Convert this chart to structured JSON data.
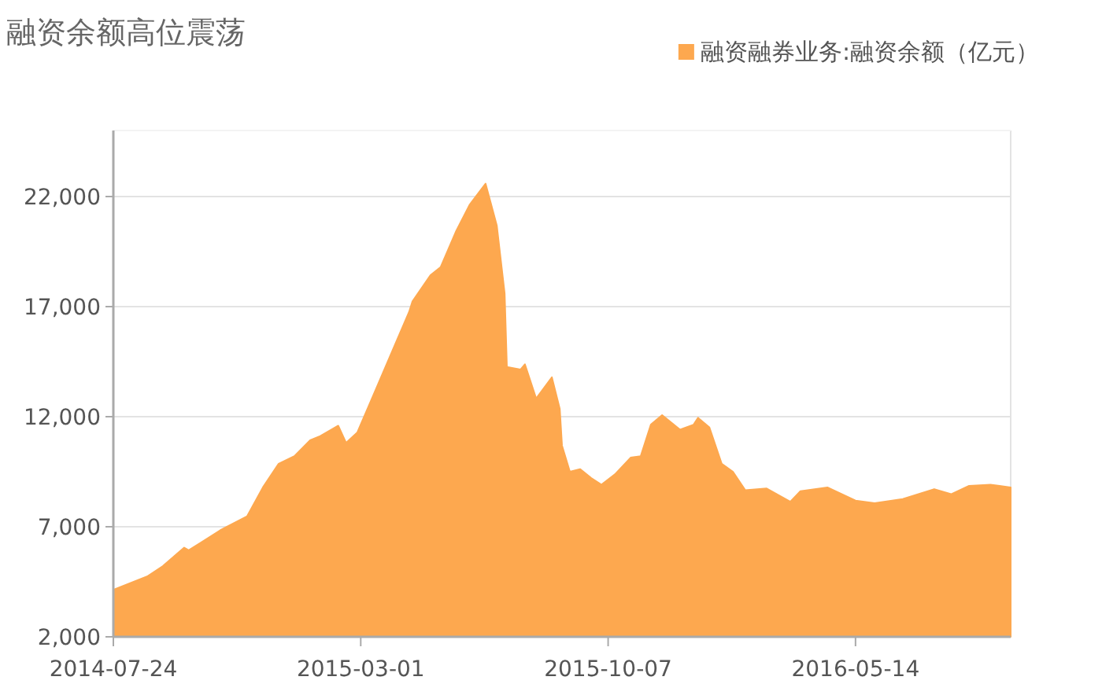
{
  "chart_data": {
    "type": "area",
    "title": "融资余额高位震荡",
    "x": [
      "2014-07-24",
      "2014-08-23",
      "2014-09-06",
      "2014-09-25",
      "2014-09-29",
      "2014-10-27",
      "2014-11-20",
      "2014-12-04",
      "2014-12-18",
      "2015-01-01",
      "2015-01-15",
      "2015-01-24",
      "2015-02-09",
      "2015-02-16",
      "2015-02-26",
      "2015-03-12",
      "2015-03-26",
      "2015-04-13",
      "2015-04-16",
      "2015-05-02",
      "2015-05-11",
      "2015-05-25",
      "2015-06-06",
      "2015-06-20",
      "2015-06-30",
      "2015-07-07",
      "2015-07-09",
      "2015-07-21",
      "2015-07-25",
      "2015-08-04",
      "2015-08-18",
      "2015-08-25",
      "2015-08-27",
      "2015-09-03",
      "2015-09-12",
      "2015-09-22",
      "2015-10-01",
      "2015-10-13",
      "2015-10-27",
      "2015-11-05",
      "2015-11-14",
      "2015-11-24",
      "2015-12-10",
      "2015-12-22",
      "2015-12-26",
      "2016-01-05",
      "2016-01-16",
      "2016-01-26",
      "2016-02-06",
      "2016-02-25",
      "2016-03-17",
      "2016-03-26",
      "2016-04-19",
      "2016-05-14",
      "2016-05-31",
      "2016-06-25",
      "2016-07-23",
      "2016-08-07",
      "2016-08-23",
      "2016-09-11",
      "2016-09-29"
    ],
    "series": [
      {
        "name": "融资融券业务:融资余额（亿元）",
        "color": "#fda84f",
        "values": [
          4140,
          4740,
          5210,
          6050,
          5930,
          6840,
          7480,
          8790,
          9860,
          10210,
          10930,
          11120,
          11590,
          10810,
          11290,
          12950,
          14620,
          16760,
          17240,
          18430,
          18790,
          20450,
          21640,
          22590,
          20690,
          17590,
          14260,
          14140,
          14380,
          12830,
          13790,
          12360,
          10690,
          9500,
          9620,
          9210,
          8910,
          9380,
          10140,
          10210,
          11640,
          12070,
          11410,
          11640,
          11950,
          11520,
          9860,
          9500,
          8660,
          8740,
          8140,
          8620,
          8790,
          8190,
          8070,
          8260,
          8710,
          8480,
          8860,
          8910,
          8790
        ]
      }
    ],
    "xlim": [
      "2014-07-24",
      "2016-09-29"
    ],
    "xticks": [
      "2014-07-24",
      "2015-03-01",
      "2015-10-07",
      "2016-05-14"
    ],
    "ylim": [
      2000,
      25000
    ],
    "yticks": [
      {
        "value": 2000,
        "label": "2,000"
      },
      {
        "value": 7000,
        "label": "7,000"
      },
      {
        "value": 12000,
        "label": "12,000"
      },
      {
        "value": 17000,
        "label": "17,000"
      },
      {
        "value": 22000,
        "label": "22,000"
      }
    ],
    "grid": "y",
    "legend": "top right",
    "marker": "none"
  }
}
